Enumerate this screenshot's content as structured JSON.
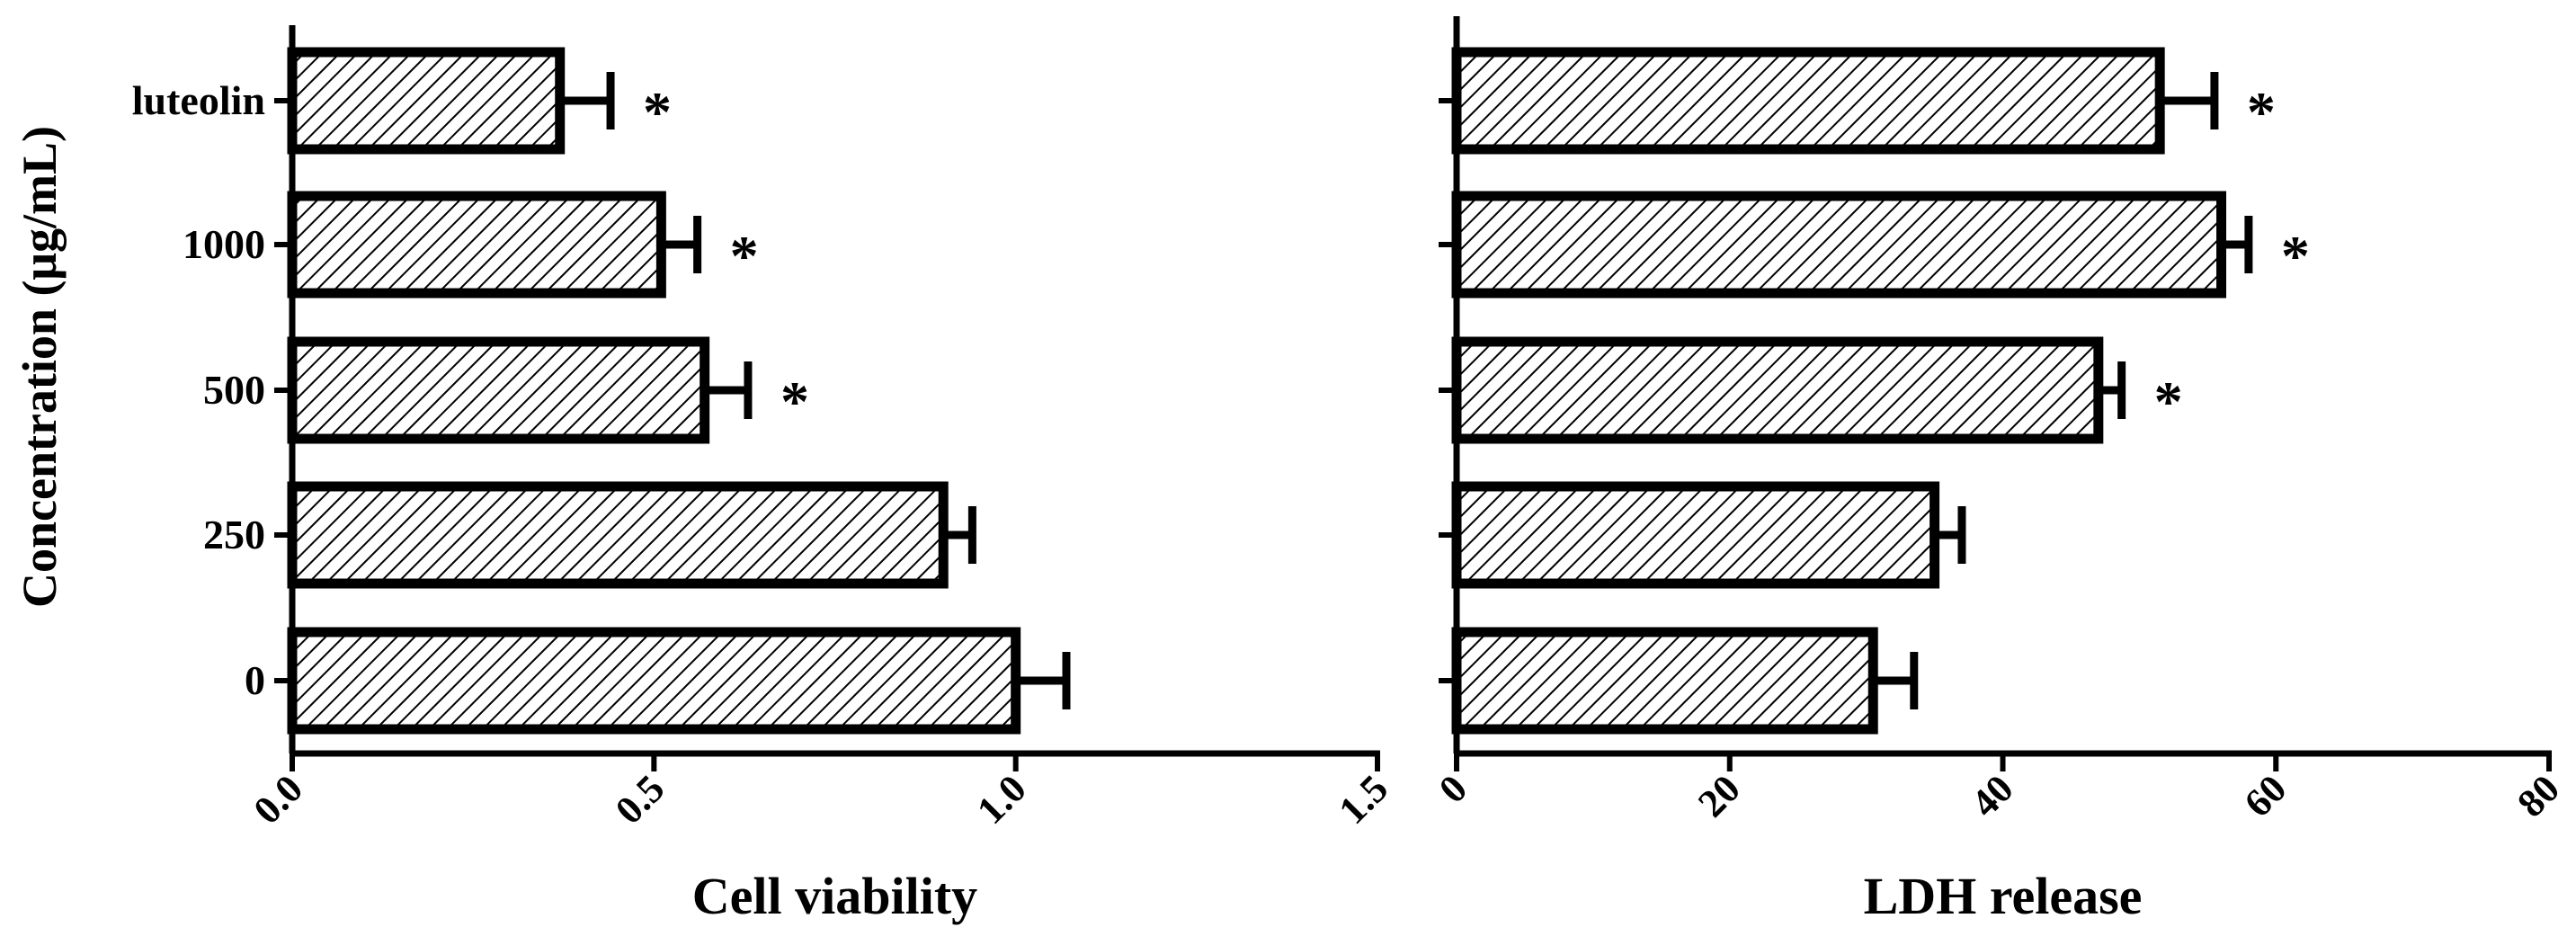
{
  "figure": {
    "y_axis_label": "Concentration (μg/mL)"
  },
  "styles": {
    "bar_fill": "hatched-diagonal",
    "bar_stroke": "#000000",
    "background": "#ffffff"
  },
  "chart_data": [
    {
      "type": "bar",
      "orientation": "horizontal",
      "categories": [
        "luteolin",
        "1000",
        "500",
        "250",
        "0"
      ],
      "values": [
        0.37,
        0.51,
        0.57,
        0.9,
        1.0
      ],
      "errors": [
        0.07,
        0.05,
        0.06,
        0.04,
        0.07
      ],
      "significance": [
        "*",
        "*",
        "*",
        "",
        ""
      ],
      "xlabel": "Cell viability",
      "ylabel": "Concentration (μg/mL)",
      "xlim": [
        0,
        1.5
      ],
      "xticks": [
        "0.0",
        "0.5",
        "1.0",
        "1.5"
      ],
      "grid": false,
      "legend": "none"
    },
    {
      "type": "bar",
      "orientation": "horizontal",
      "categories": [
        "luteolin",
        "1000",
        "500",
        "250",
        "0"
      ],
      "values": [
        51.5,
        56,
        47,
        35,
        30.5
      ],
      "errors": [
        4,
        2,
        1.7,
        2,
        3
      ],
      "significance": [
        "*",
        "*",
        "*",
        "",
        ""
      ],
      "xlabel": "LDH release",
      "ylabel": "",
      "xlim": [
        0,
        80
      ],
      "xticks": [
        "0",
        "20",
        "40",
        "60",
        "80"
      ],
      "grid": false,
      "legend": "none"
    }
  ]
}
